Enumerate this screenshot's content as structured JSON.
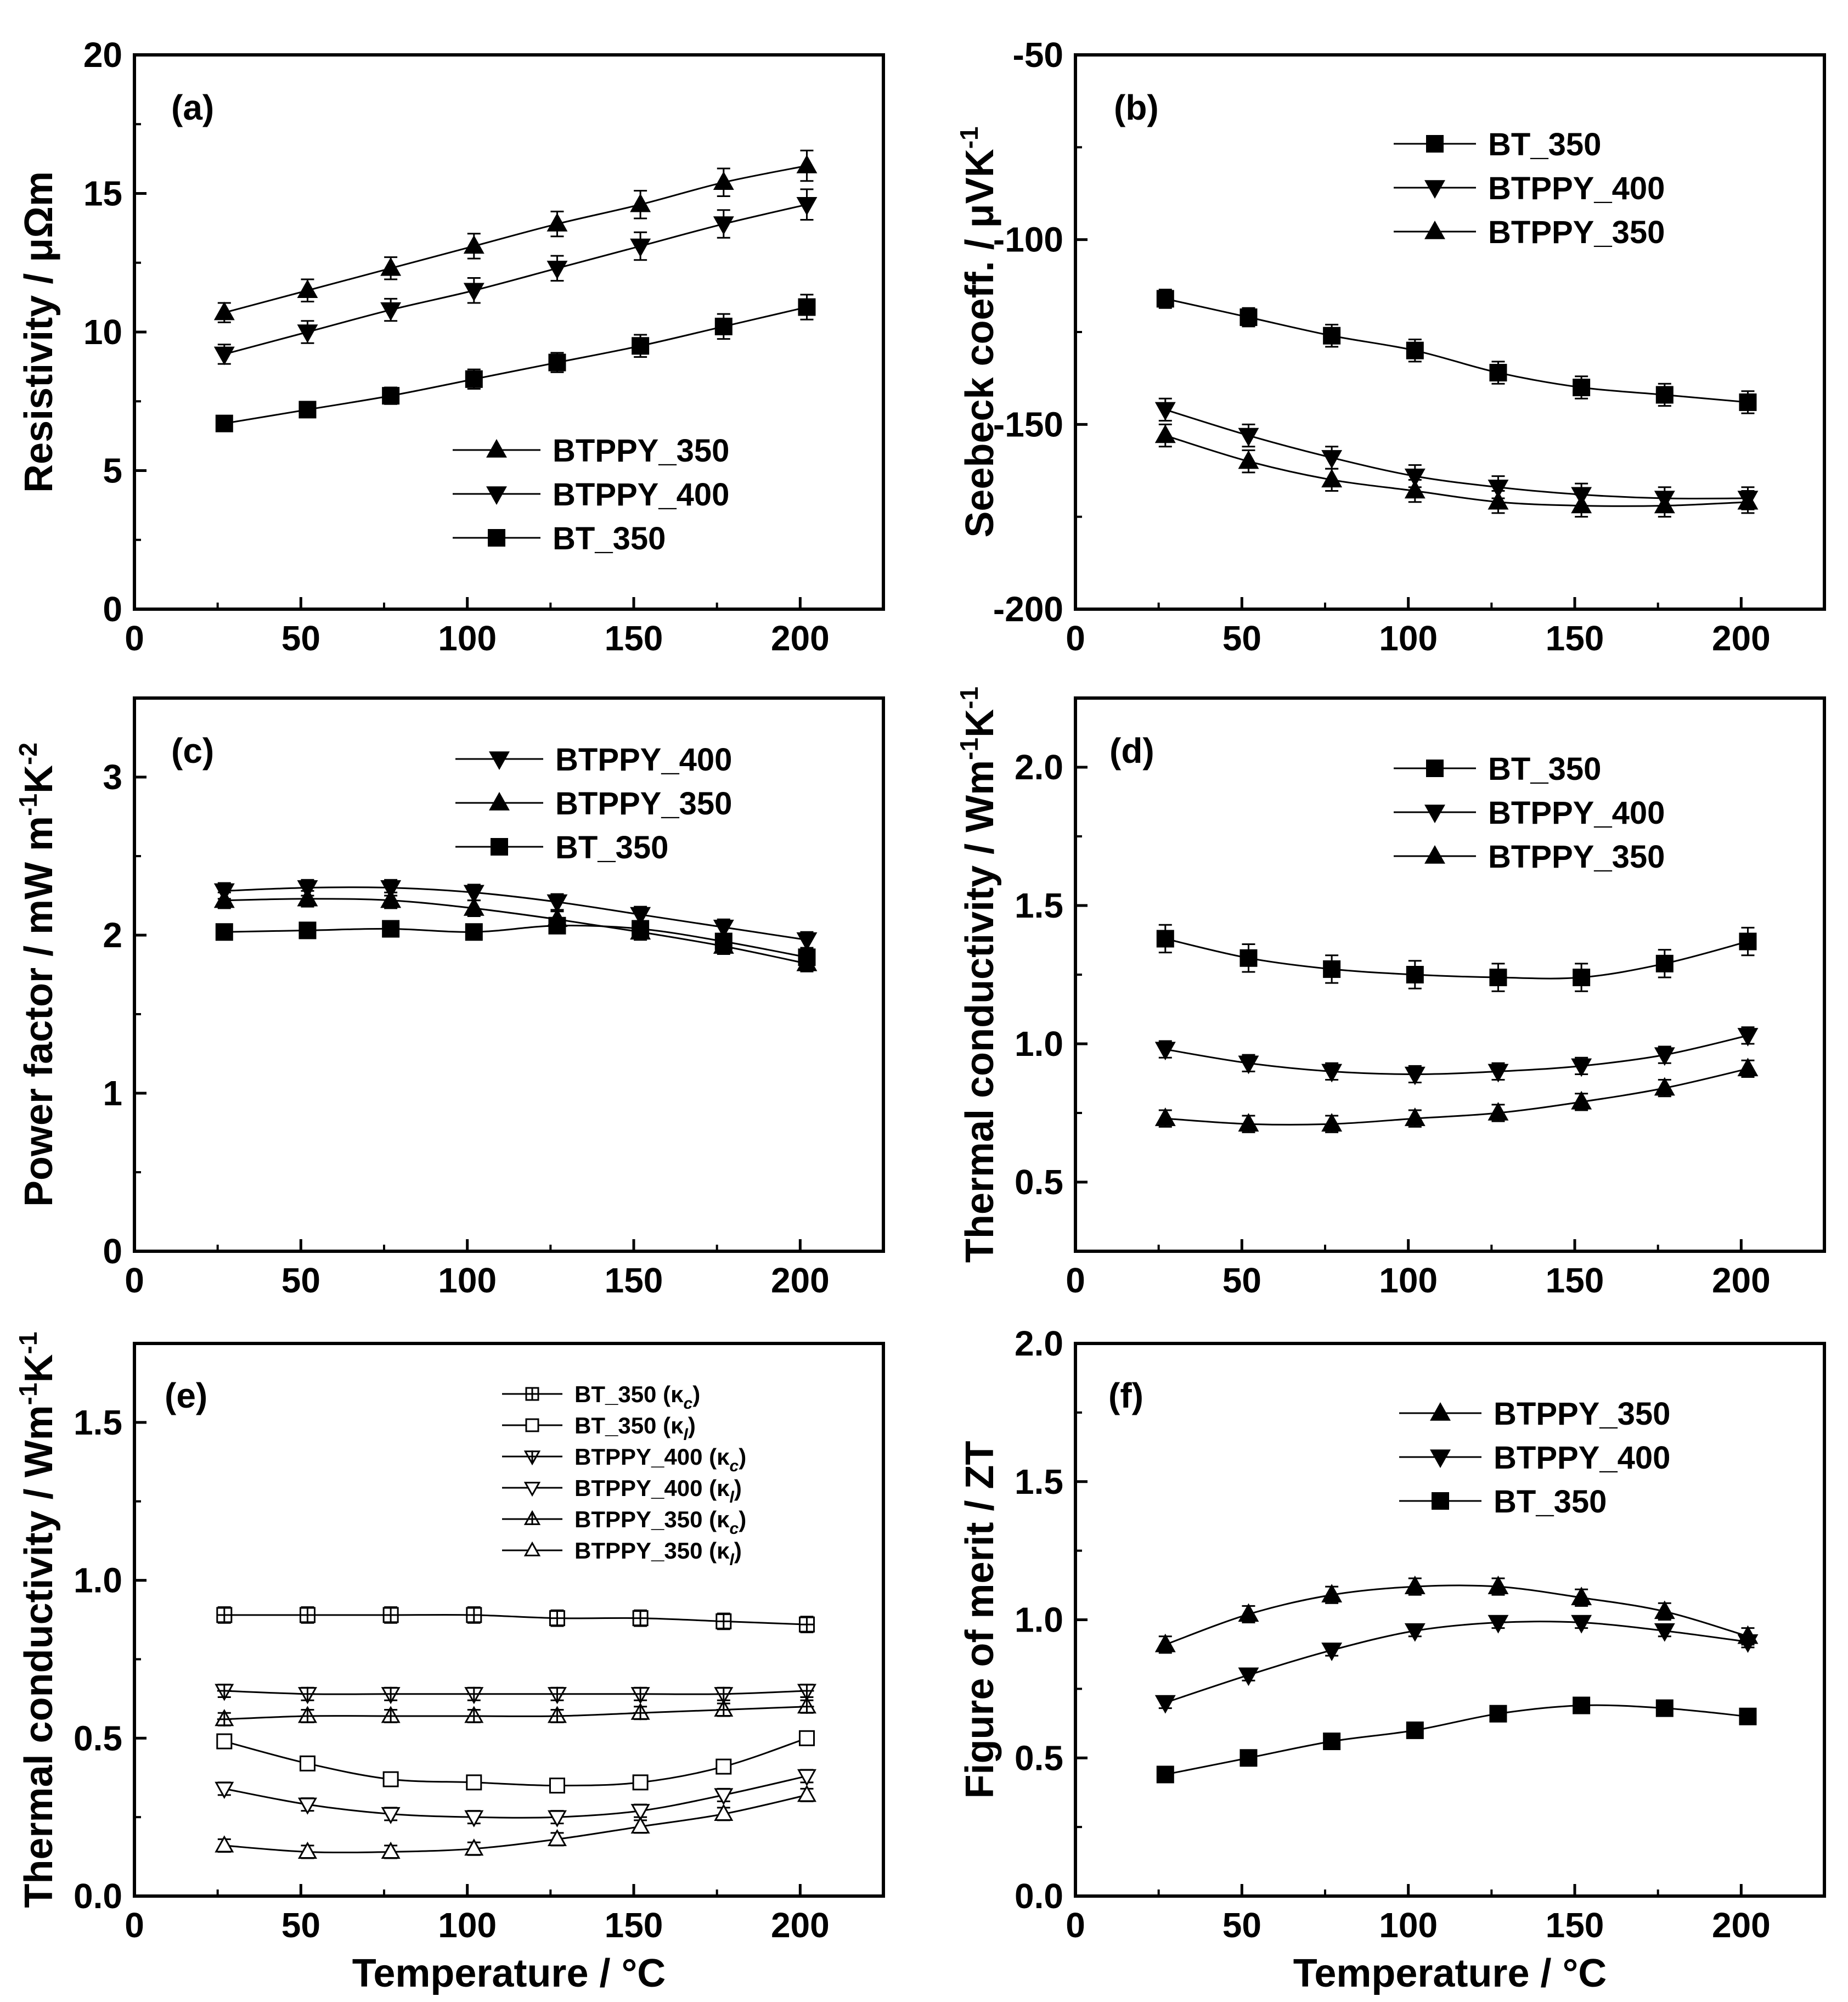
{
  "chart_data": [
    {
      "id": "a",
      "type": "line",
      "panel_label": "(a)",
      "xlabel": "",
      "ylabel": "Resistivity / μΩm",
      "xlim": [
        0,
        225
      ],
      "ylim": [
        0,
        20
      ],
      "xticks": [
        0,
        50,
        100,
        150,
        200
      ],
      "yticks": [
        0,
        5,
        10,
        15,
        20
      ],
      "x": [
        27,
        52,
        77,
        102,
        127,
        152,
        177,
        202
      ],
      "legend_location": "lower-right",
      "legend_order": [
        0,
        1,
        2
      ],
      "series": [
        {
          "name": "BTPPY_350",
          "marker": "triangle-up",
          "filled": true,
          "values": [
            10.7,
            11.5,
            12.3,
            13.1,
            13.9,
            14.6,
            15.4,
            16.0
          ],
          "err": [
            0.35,
            0.4,
            0.4,
            0.45,
            0.45,
            0.5,
            0.5,
            0.55
          ]
        },
        {
          "name": "BTPPY_400",
          "marker": "triangle-down",
          "filled": true,
          "values": [
            9.2,
            10.0,
            10.8,
            11.5,
            12.3,
            13.1,
            13.9,
            14.6
          ],
          "err": [
            0.35,
            0.4,
            0.4,
            0.45,
            0.45,
            0.5,
            0.5,
            0.55
          ]
        },
        {
          "name": "BT_350",
          "marker": "square",
          "filled": true,
          "values": [
            6.7,
            7.2,
            7.7,
            8.3,
            8.9,
            9.5,
            10.2,
            10.9
          ],
          "err": [
            0.2,
            0.25,
            0.3,
            0.35,
            0.35,
            0.4,
            0.45,
            0.45
          ]
        }
      ]
    },
    {
      "id": "b",
      "type": "line",
      "panel_label": "(b)",
      "xlabel": "",
      "ylabel": "Seebeck coeff. / μVK",
      "ylabel_sup": "-1",
      "xlim": [
        0,
        225
      ],
      "ylim": [
        -200,
        -50
      ],
      "xticks": [
        0,
        50,
        100,
        150,
        200
      ],
      "yticks": [
        -200,
        -150,
        -100,
        -50
      ],
      "x": [
        27,
        52,
        77,
        102,
        127,
        152,
        177,
        202
      ],
      "legend_location": "upper-right",
      "legend_order": [
        0,
        1,
        2
      ],
      "series": [
        {
          "name": "BT_350",
          "marker": "square",
          "filled": true,
          "values": [
            -116,
            -121,
            -126,
            -130,
            -136,
            -140,
            -142,
            -144
          ],
          "err": [
            2.5,
            2.5,
            3,
            3,
            3,
            3,
            3,
            3
          ]
        },
        {
          "name": "BTPPY_400",
          "marker": "triangle-down",
          "filled": true,
          "values": [
            -146,
            -153,
            -159,
            -164,
            -167,
            -169,
            -170,
            -170
          ],
          "err": [
            3,
            3,
            3,
            3,
            3,
            3,
            3,
            3
          ]
        },
        {
          "name": "BTPPY_350",
          "marker": "triangle-up",
          "filled": true,
          "values": [
            -153,
            -160,
            -165,
            -168,
            -171,
            -172,
            -172,
            -171
          ],
          "err": [
            3,
            3,
            3,
            3,
            3,
            3,
            3,
            3
          ]
        }
      ]
    },
    {
      "id": "c",
      "type": "line",
      "panel_label": "(c)",
      "xlabel": "",
      "ylabel": "Power factor / mW m",
      "ylabel_sup1": "-1",
      "ylabel_mid": "K",
      "ylabel_sup2": "-2",
      "xlim": [
        0,
        225
      ],
      "ylim": [
        0,
        3.5
      ],
      "xticks": [
        0,
        50,
        100,
        150,
        200
      ],
      "yticks": [
        0,
        1,
        2,
        3
      ],
      "x": [
        27,
        52,
        77,
        102,
        127,
        152,
        177,
        202
      ],
      "legend_location": "upper-right",
      "legend_order": [
        0,
        1,
        2
      ],
      "series": [
        {
          "name": "BTPPY_400",
          "marker": "triangle-down",
          "filled": true,
          "values": [
            2.28,
            2.3,
            2.3,
            2.27,
            2.21,
            2.13,
            2.05,
            1.97
          ],
          "err": [
            0.05,
            0.05,
            0.05,
            0.05,
            0.05,
            0.05,
            0.05,
            0.05
          ]
        },
        {
          "name": "BTPPY_350",
          "marker": "triangle-up",
          "filled": true,
          "values": [
            2.22,
            2.23,
            2.22,
            2.17,
            2.1,
            2.02,
            1.93,
            1.82
          ],
          "err": [
            0.05,
            0.05,
            0.05,
            0.05,
            0.05,
            0.05,
            0.05,
            0.05
          ]
        },
        {
          "name": "BT_350",
          "marker": "square",
          "filled": true,
          "values": [
            2.02,
            2.03,
            2.04,
            2.02,
            2.06,
            2.04,
            1.96,
            1.86
          ],
          "err": [
            0.03,
            0.03,
            0.03,
            0.03,
            0.03,
            0.03,
            0.03,
            0.03
          ]
        }
      ]
    },
    {
      "id": "d",
      "type": "line",
      "panel_label": "(d)",
      "xlabel": "",
      "ylabel": "Thermal conductivity / Wm",
      "ylabel_sup1": "-1",
      "ylabel_mid": "K",
      "ylabel_sup2": "-1",
      "xlim": [
        0,
        225
      ],
      "ylim": [
        0.25,
        2.25
      ],
      "xticks": [
        0,
        50,
        100,
        150,
        200
      ],
      "yticks": [
        0.5,
        1.0,
        1.5,
        2.0
      ],
      "ytick_labels": [
        "0.5",
        "1.0",
        "1.5",
        "2.0"
      ],
      "x": [
        27,
        52,
        77,
        102,
        127,
        152,
        177,
        202
      ],
      "legend_location": "upper-right",
      "legend_order": [
        0,
        1,
        2
      ],
      "series": [
        {
          "name": "BT_350",
          "marker": "square",
          "filled": true,
          "values": [
            1.38,
            1.31,
            1.27,
            1.25,
            1.24,
            1.24,
            1.29,
            1.37
          ],
          "err": [
            0.05,
            0.05,
            0.05,
            0.05,
            0.05,
            0.05,
            0.05,
            0.05
          ]
        },
        {
          "name": "BTPPY_400",
          "marker": "triangle-down",
          "filled": true,
          "values": [
            0.98,
            0.93,
            0.9,
            0.89,
            0.9,
            0.92,
            0.96,
            1.03
          ],
          "err": [
            0.03,
            0.03,
            0.03,
            0.03,
            0.03,
            0.03,
            0.03,
            0.03
          ]
        },
        {
          "name": "BTPPY_350",
          "marker": "triangle-up",
          "filled": true,
          "values": [
            0.73,
            0.71,
            0.71,
            0.73,
            0.75,
            0.79,
            0.84,
            0.91
          ],
          "err": [
            0.03,
            0.03,
            0.03,
            0.03,
            0.03,
            0.03,
            0.03,
            0.03
          ]
        }
      ]
    },
    {
      "id": "e",
      "type": "line",
      "panel_label": "(e)",
      "xlabel": "Temperature / °C",
      "ylabel": "Thermal conductivity / Wm",
      "ylabel_sup1": "-1",
      "ylabel_mid": "K",
      "ylabel_sup2": "-1",
      "xlim": [
        0,
        225
      ],
      "ylim": [
        0,
        1.75
      ],
      "xticks": [
        0,
        50,
        100,
        150,
        200
      ],
      "yticks": [
        0.0,
        0.5,
        1.0,
        1.5
      ],
      "ytick_labels": [
        "0.0",
        "0.5",
        "1.0",
        "1.5"
      ],
      "x": [
        27,
        52,
        77,
        102,
        127,
        152,
        177,
        202
      ],
      "legend_location": "upper-right",
      "legend_order": [
        0,
        1,
        2,
        3,
        4,
        5
      ],
      "series": [
        {
          "name": "BT_350 (κ",
          "sub": "c",
          "name_tail": ")",
          "marker": "square-cross",
          "filled": false,
          "values": [
            0.89,
            0.89,
            0.89,
            0.89,
            0.88,
            0.88,
            0.87,
            0.86
          ],
          "err": [
            0.025,
            0.025,
            0.025,
            0.025,
            0.025,
            0.025,
            0.025,
            0.025
          ]
        },
        {
          "name": "BT_350 (κ",
          "sub": "l",
          "name_tail": ")",
          "marker": "square",
          "filled": false,
          "values": [
            0.49,
            0.42,
            0.37,
            0.36,
            0.35,
            0.36,
            0.41,
            0.5
          ],
          "err": [
            0.015,
            0.015,
            0.015,
            0.015,
            0.015,
            0.015,
            0.015,
            0.015
          ]
        },
        {
          "name": "BTPPY_400 (κ",
          "sub": "c",
          "name_tail": ")",
          "marker": "triangle-down-cross",
          "filled": false,
          "values": [
            0.65,
            0.64,
            0.64,
            0.64,
            0.64,
            0.64,
            0.64,
            0.65
          ],
          "err": [
            0.02,
            0.02,
            0.02,
            0.02,
            0.02,
            0.02,
            0.02,
            0.02
          ]
        },
        {
          "name": "BTPPY_400 (κ",
          "sub": "l",
          "name_tail": ")",
          "marker": "triangle-down",
          "filled": false,
          "values": [
            0.34,
            0.29,
            0.26,
            0.25,
            0.25,
            0.27,
            0.32,
            0.38
          ],
          "err": [
            0.02,
            0.02,
            0.02,
            0.02,
            0.02,
            0.02,
            0.02,
            0.02
          ]
        },
        {
          "name": "BTPPY_350 (κ",
          "sub": "c",
          "name_tail": ")",
          "marker": "triangle-up-cross",
          "filled": false,
          "values": [
            0.56,
            0.57,
            0.57,
            0.57,
            0.57,
            0.58,
            0.59,
            0.6
          ],
          "err": [
            0.02,
            0.02,
            0.02,
            0.02,
            0.02,
            0.02,
            0.02,
            0.02
          ]
        },
        {
          "name": "BTPPY_350 (κ",
          "sub": "l",
          "name_tail": ")",
          "marker": "triangle-up",
          "filled": false,
          "values": [
            0.16,
            0.14,
            0.14,
            0.15,
            0.18,
            0.22,
            0.26,
            0.32
          ],
          "err": [
            0.02,
            0.02,
            0.02,
            0.02,
            0.02,
            0.02,
            0.02,
            0.02
          ]
        }
      ]
    },
    {
      "id": "f",
      "type": "line",
      "panel_label": "(f)",
      "xlabel": "Temperature / °C",
      "ylabel": "Figure of merit / ZT",
      "xlim": [
        0,
        225
      ],
      "ylim": [
        0,
        2.0
      ],
      "xticks": [
        0,
        50,
        100,
        150,
        200
      ],
      "yticks": [
        0.0,
        0.5,
        1.0,
        1.5,
        2.0
      ],
      "ytick_labels": [
        "0.0",
        "0.5",
        "1.0",
        "1.5",
        "2.0"
      ],
      "x": [
        27,
        52,
        77,
        102,
        127,
        152,
        177,
        202
      ],
      "legend_location": "upper-right",
      "legend_order": [
        0,
        1,
        2
      ],
      "series": [
        {
          "name": "BTPPY_350",
          "marker": "triangle-up",
          "filled": true,
          "values": [
            0.91,
            1.02,
            1.09,
            1.12,
            1.12,
            1.08,
            1.03,
            0.94
          ],
          "err": [
            0.03,
            0.03,
            0.03,
            0.03,
            0.03,
            0.03,
            0.03,
            0.03
          ]
        },
        {
          "name": "BTPPY_400",
          "marker": "triangle-down",
          "filled": true,
          "values": [
            0.7,
            0.8,
            0.89,
            0.96,
            0.99,
            0.99,
            0.96,
            0.92
          ],
          "err": [
            0.02,
            0.02,
            0.02,
            0.02,
            0.02,
            0.02,
            0.02,
            0.02
          ]
        },
        {
          "name": "BT_350",
          "marker": "square",
          "filled": true,
          "values": [
            0.44,
            0.5,
            0.56,
            0.6,
            0.66,
            0.69,
            0.68,
            0.65
          ],
          "err": [
            0.015,
            0.015,
            0.015,
            0.015,
            0.015,
            0.015,
            0.015,
            0.015
          ]
        }
      ]
    }
  ]
}
